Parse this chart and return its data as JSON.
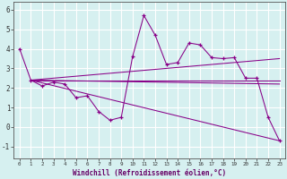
{
  "xlabel": "Windchill (Refroidissement éolien,°C)",
  "x_ticks": [
    0,
    1,
    2,
    3,
    4,
    5,
    6,
    7,
    8,
    9,
    10,
    11,
    12,
    13,
    14,
    15,
    16,
    17,
    18,
    19,
    20,
    21,
    22,
    23
  ],
  "ylim": [
    -1.6,
    6.4
  ],
  "xlim": [
    -0.5,
    23.5
  ],
  "yticks": [
    -1,
    0,
    1,
    2,
    3,
    4,
    5,
    6
  ],
  "background_color": "#d6f0f0",
  "grid_color": "#ffffff",
  "line_color": "#880088",
  "series": {
    "zigzag": {
      "x": [
        0,
        1,
        2,
        3,
        4,
        5,
        6,
        7,
        8,
        9,
        10,
        11,
        12,
        13,
        14,
        15,
        16,
        17,
        18,
        19,
        20,
        21,
        22,
        23
      ],
      "y": [
        4.0,
        2.4,
        2.1,
        2.3,
        2.2,
        1.5,
        1.6,
        0.8,
        0.35,
        0.5,
        3.6,
        5.7,
        4.7,
        3.2,
        3.3,
        4.3,
        4.2,
        3.55,
        3.5,
        3.55,
        2.5,
        2.5,
        0.5,
        -0.7
      ]
    },
    "trend1": {
      "x": [
        1,
        23
      ],
      "y": [
        2.4,
        2.4
      ]
    },
    "trend2": {
      "x": [
        1,
        23
      ],
      "y": [
        2.4,
        3.5
      ]
    },
    "trend3": {
      "x": [
        1,
        23
      ],
      "y": [
        2.4,
        2.2
      ]
    },
    "trend4": {
      "x": [
        1,
        23
      ],
      "y": [
        2.4,
        -0.7
      ]
    }
  }
}
